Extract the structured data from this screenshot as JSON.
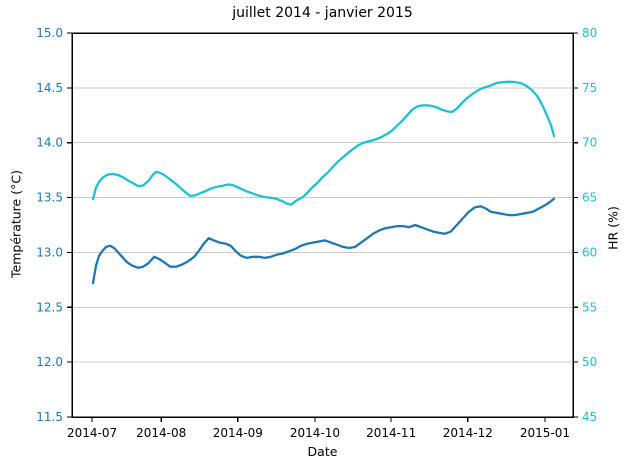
{
  "chart_data": {
    "type": "line",
    "title": "juillet 2014 - janvier 2015",
    "xlabel": "Date",
    "grid": {
      "horizontal": true,
      "vertical": false,
      "color": "#cccccc"
    },
    "legend": "none",
    "x_ticks": [
      {
        "label": "2014-07",
        "pos": 0.04
      },
      {
        "label": "2014-08",
        "pos": 0.178
      },
      {
        "label": "2014-09",
        "pos": 0.331
      },
      {
        "label": "2014-10",
        "pos": 0.485
      },
      {
        "label": "2014-11",
        "pos": 0.637
      },
      {
        "label": "2014-12",
        "pos": 0.79
      },
      {
        "label": "2015-01",
        "pos": 0.944
      }
    ],
    "y_left": {
      "label": "Température (°C)",
      "color": "#1f77b4",
      "range": [
        11.5,
        15.0
      ],
      "ticks": [
        11.5,
        12.0,
        12.5,
        13.0,
        13.5,
        14.0,
        14.5,
        15.0
      ],
      "tick_labels": [
        "11.5",
        "12.0",
        "12.5",
        "13.0",
        "13.5",
        "14.0",
        "14.5",
        "15.0"
      ]
    },
    "y_right": {
      "label": "HR (%)",
      "color": "#1ec0d4",
      "range": [
        45,
        80
      ],
      "ticks": [
        45,
        50,
        55,
        60,
        65,
        70,
        75,
        80
      ],
      "tick_labels": [
        "45",
        "50",
        "55",
        "60",
        "65",
        "70",
        "75",
        "80"
      ]
    },
    "series": [
      {
        "id": "temperature-line",
        "name": "Température (°C)",
        "axis": "left",
        "color": "#1f77b4",
        "x": [
          0.042,
          0.048,
          0.054,
          0.06,
          0.068,
          0.076,
          0.084,
          0.092,
          0.1,
          0.11,
          0.12,
          0.132,
          0.142,
          0.152,
          0.164,
          0.174,
          0.184,
          0.196,
          0.208,
          0.22,
          0.232,
          0.244,
          0.254,
          0.263,
          0.273,
          0.283,
          0.295,
          0.307,
          0.317,
          0.327,
          0.337,
          0.349,
          0.361,
          0.373,
          0.385,
          0.397,
          0.409,
          0.421,
          0.433,
          0.445,
          0.457,
          0.469,
          0.481,
          0.493,
          0.505,
          0.517,
          0.529,
          0.541,
          0.553,
          0.565,
          0.577,
          0.589,
          0.601,
          0.613,
          0.625,
          0.637,
          0.649,
          0.661,
          0.673,
          0.685,
          0.697,
          0.709,
          0.721,
          0.732,
          0.744,
          0.756,
          0.768,
          0.78,
          0.792,
          0.804,
          0.816,
          0.826,
          0.836,
          0.848,
          0.86,
          0.872,
          0.884,
          0.896,
          0.908,
          0.92,
          0.932,
          0.944,
          0.954,
          0.962
        ],
        "v": [
          12.72,
          12.88,
          12.97,
          13.01,
          13.05,
          13.06,
          13.04,
          13.0,
          12.96,
          12.91,
          12.88,
          12.86,
          12.87,
          12.9,
          12.96,
          12.94,
          12.91,
          12.87,
          12.87,
          12.89,
          12.92,
          12.96,
          13.02,
          13.08,
          13.13,
          13.11,
          13.09,
          13.08,
          13.06,
          13.01,
          12.97,
          12.95,
          12.96,
          12.96,
          12.95,
          12.96,
          12.98,
          12.99,
          13.01,
          13.03,
          13.06,
          13.08,
          13.09,
          13.1,
          13.11,
          13.09,
          13.07,
          13.05,
          13.04,
          13.05,
          13.09,
          13.13,
          13.17,
          13.2,
          13.22,
          13.23,
          13.24,
          13.24,
          13.23,
          13.25,
          13.23,
          13.21,
          13.19,
          13.18,
          13.17,
          13.19,
          13.25,
          13.31,
          13.37,
          13.41,
          13.42,
          13.4,
          13.37,
          13.36,
          13.35,
          13.34,
          13.34,
          13.35,
          13.36,
          13.37,
          13.4,
          13.43,
          13.46,
          13.49
        ]
      },
      {
        "id": "hr-line",
        "name": "HR (%)",
        "axis": "right",
        "color": "#1ec0d4",
        "x": [
          0.042,
          0.048,
          0.054,
          0.062,
          0.072,
          0.082,
          0.092,
          0.102,
          0.112,
          0.122,
          0.132,
          0.142,
          0.152,
          0.162,
          0.168,
          0.176,
          0.186,
          0.196,
          0.206,
          0.216,
          0.226,
          0.236,
          0.246,
          0.256,
          0.267,
          0.279,
          0.291,
          0.303,
          0.313,
          0.323,
          0.335,
          0.347,
          0.359,
          0.371,
          0.383,
          0.395,
          0.407,
          0.419,
          0.429,
          0.437,
          0.447,
          0.459,
          0.469,
          0.479,
          0.489,
          0.499,
          0.509,
          0.519,
          0.529,
          0.539,
          0.549,
          0.559,
          0.569,
          0.579,
          0.589,
          0.599,
          0.609,
          0.619,
          0.629,
          0.639,
          0.649,
          0.659,
          0.669,
          0.679,
          0.689,
          0.699,
          0.709,
          0.719,
          0.729,
          0.739,
          0.749,
          0.758,
          0.768,
          0.778,
          0.788,
          0.798,
          0.808,
          0.818,
          0.828,
          0.838,
          0.848,
          0.858,
          0.868,
          0.878,
          0.888,
          0.898,
          0.908,
          0.918,
          0.928,
          0.938,
          0.948,
          0.956,
          0.962
        ],
        "v": [
          64.85,
          65.9,
          66.45,
          66.85,
          67.1,
          67.15,
          67.05,
          66.85,
          66.55,
          66.3,
          66.05,
          66.1,
          66.5,
          67.1,
          67.35,
          67.25,
          67.0,
          66.65,
          66.3,
          65.9,
          65.5,
          65.15,
          65.2,
          65.4,
          65.6,
          65.85,
          66.0,
          66.1,
          66.2,
          66.1,
          65.85,
          65.6,
          65.4,
          65.2,
          65.05,
          65.0,
          64.9,
          64.7,
          64.45,
          64.35,
          64.7,
          65.0,
          65.4,
          65.9,
          66.3,
          66.8,
          67.2,
          67.7,
          68.2,
          68.6,
          69.0,
          69.35,
          69.7,
          69.95,
          70.1,
          70.2,
          70.35,
          70.55,
          70.8,
          71.1,
          71.55,
          72.0,
          72.5,
          73.0,
          73.3,
          73.4,
          73.4,
          73.35,
          73.2,
          73.0,
          72.85,
          72.8,
          73.1,
          73.6,
          74.05,
          74.4,
          74.7,
          74.95,
          75.1,
          75.25,
          75.45,
          75.5,
          75.55,
          75.55,
          75.5,
          75.4,
          75.15,
          74.8,
          74.3,
          73.5,
          72.5,
          71.6,
          70.6
        ]
      }
    ]
  }
}
